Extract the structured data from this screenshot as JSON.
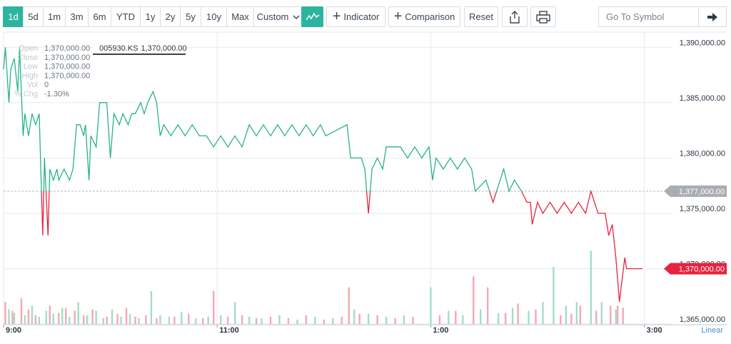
{
  "toolbar": {
    "ranges": [
      "1d",
      "5d",
      "1m",
      "3m",
      "6m",
      "YTD",
      "1y",
      "2y",
      "5y",
      "10y",
      "Max"
    ],
    "active_range_index": 0,
    "custom": "Custom",
    "indicator": "Indicator",
    "comparison": "Comparison",
    "reset": "Reset",
    "search_placeholder": "Go To Symbol"
  },
  "legend": {
    "symbol": "005930.KS",
    "price": "1,370,000.00",
    "fields": [
      {
        "label": "Open",
        "value": "1,370,000.00"
      },
      {
        "label": "Close",
        "value": "1,370,000.00"
      },
      {
        "label": "Low",
        "value": "1,370,000.00"
      },
      {
        "label": "High",
        "value": "1,370,000.00"
      },
      {
        "label": "Vol",
        "value": "0"
      },
      {
        "label": "% Chg",
        "value": "-1.30%"
      }
    ]
  },
  "chart_data": {
    "type": "line",
    "x": [
      0,
      1,
      3,
      4,
      6,
      8,
      9,
      11,
      12,
      14,
      16,
      18,
      20,
      22,
      23,
      25,
      26,
      28,
      30,
      31,
      34,
      37,
      39,
      41,
      43,
      45,
      46,
      48,
      49,
      52,
      54,
      58,
      60,
      62,
      65,
      67,
      70,
      72,
      74,
      77,
      79,
      81,
      84,
      86,
      88,
      90,
      94,
      98,
      102,
      106,
      110,
      114,
      118,
      122,
      126,
      130,
      134,
      138,
      142,
      146,
      150,
      154,
      158,
      162,
      166,
      170,
      174,
      178,
      181,
      193,
      195,
      201,
      203,
      205,
      207,
      210,
      213,
      215,
      223,
      227,
      231,
      235,
      239,
      241,
      243,
      247,
      251,
      255,
      259,
      263,
      265,
      271,
      275,
      279,
      281,
      284,
      287,
      291,
      294,
      296,
      297,
      300,
      303,
      307,
      311,
      315,
      319,
      323,
      327,
      330,
      334,
      338,
      340,
      342,
      344,
      346,
      349,
      350,
      359
    ],
    "values": [
      1388000,
      1390000,
      1385000,
      1388000,
      1389000,
      1386000,
      1390000,
      1382000,
      1384000,
      1382000,
      1384000,
      1383000,
      1384000,
      1373000,
      1380000,
      1373000,
      1379000,
      1378000,
      1379000,
      1378000,
      1379000,
      1378000,
      1379000,
      1383000,
      1383000,
      1382000,
      1383000,
      1378000,
      1382000,
      1381000,
      1385000,
      1385000,
      1380000,
      1384000,
      1383000,
      1384000,
      1383000,
      1384000,
      1384000,
      1385000,
      1384000,
      1385000,
      1386000,
      1385000,
      1382000,
      1383000,
      1382000,
      1383000,
      1382000,
      1383000,
      1382000,
      1382000,
      1381000,
      1382000,
      1381000,
      1382000,
      1381000,
      1383000,
      1382000,
      1383000,
      1382000,
      1383000,
      1382000,
      1383000,
      1382000,
      1383000,
      1382000,
      1383000,
      1382000,
      1383000,
      1380000,
      1380000,
      1379000,
      1375000,
      1379000,
      1380000,
      1379000,
      1381000,
      1381000,
      1380000,
      1381000,
      1380000,
      1381000,
      1378000,
      1380000,
      1379000,
      1380000,
      1379000,
      1380000,
      1379000,
      1377000,
      1378000,
      1376000,
      1378000,
      1379000,
      1377000,
      1378000,
      1377000,
      1376000,
      1376000,
      1374000,
      1376000,
      1375000,
      1376000,
      1375000,
      1376000,
      1375000,
      1376000,
      1375000,
      1377000,
      1375000,
      1375000,
      1373000,
      1374000,
      1371000,
      1367000,
      1371000,
      1370000,
      1370000
    ],
    "up_color": "#26b38a",
    "down_color": "#e8223e",
    "xlim": [
      0,
      375
    ],
    "xticks": [
      {
        "value": 0,
        "label": "9:00"
      },
      {
        "value": 120,
        "label": "11:00"
      },
      {
        "value": 240,
        "label": "1:00"
      },
      {
        "value": 360,
        "label": "3:00"
      }
    ],
    "ylim": [
      1365000,
      1391500
    ],
    "yticks": [
      {
        "value": 1365000,
        "label": "1,365,000.00"
      },
      {
        "value": 1370000,
        "label": "1,370,000.00"
      },
      {
        "value": 1375000,
        "label": "1,375,000.00"
      },
      {
        "value": 1380000,
        "label": "1,380,000.00"
      },
      {
        "value": 1385000,
        "label": "1,385,000.00"
      },
      {
        "value": 1390000,
        "label": "1,390,000.00"
      }
    ],
    "grid": true,
    "log_scale": false,
    "scale_label": "Linear",
    "prev_close": {
      "value": 1377000,
      "label": "1,377,000.00"
    },
    "last": {
      "value": 1370000,
      "label": "1,370,000.00"
    },
    "y2lim": [
      0,
      400
    ],
    "volume": {
      "up": {
        "color": "#a3ddca",
        "x": [
          3,
          6,
          12,
          16,
          20,
          24,
          28,
          33,
          37,
          42,
          47,
          52,
          56,
          61,
          66,
          71,
          76,
          83,
          88,
          93,
          100,
          108,
          115,
          122,
          130,
          138,
          145,
          155,
          165,
          175,
          185,
          197,
          205,
          215,
          225,
          240,
          250,
          258,
          268,
          278,
          286,
          295,
          303,
          309,
          316,
          322,
          330,
          336,
          344
        ],
        "values": [
          20,
          15,
          12,
          25,
          10,
          18,
          14,
          22,
          10,
          30,
          12,
          18,
          8,
          20,
          10,
          14,
          8,
          45,
          12,
          10,
          16,
          8,
          10,
          12,
          30,
          10,
          8,
          12,
          6,
          10,
          8,
          20,
          14,
          10,
          12,
          50,
          18,
          12,
          20,
          15,
          22,
          18,
          30,
          78,
          25,
          30,
          100,
          30,
          20
        ]
      },
      "down": {
        "color": "#f4a8b2",
        "x": [
          1,
          5,
          10,
          14,
          18,
          26,
          31,
          35,
          40,
          45,
          50,
          58,
          64,
          69,
          74,
          80,
          86,
          96,
          104,
          112,
          118,
          126,
          134,
          142,
          150,
          160,
          170,
          180,
          190,
          194,
          200,
          210,
          220,
          230,
          245,
          254,
          264,
          272,
          282,
          289,
          299,
          313,
          319,
          324,
          333,
          341,
          345,
          348
        ],
        "values": [
          30,
          18,
          35,
          20,
          12,
          25,
          15,
          22,
          18,
          12,
          20,
          10,
          14,
          22,
          10,
          12,
          8,
          10,
          14,
          8,
          45,
          10,
          12,
          8,
          10,
          8,
          12,
          6,
          10,
          50,
          14,
          12,
          8,
          10,
          12,
          18,
          65,
          50,
          15,
          28,
          20,
          12,
          14,
          25,
          18,
          25,
          25,
          22
        ]
      }
    }
  }
}
